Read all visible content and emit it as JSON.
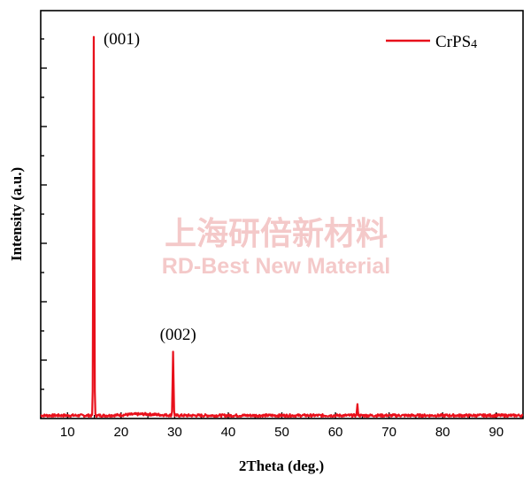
{
  "chart_data": {
    "type": "line",
    "title": "",
    "xlabel": "2Theta (deg.)",
    "ylabel": "Intensity (a.u.)",
    "xlim": [
      5,
      95
    ],
    "ylim": [
      0,
      100
    ],
    "x_ticks": [
      10,
      20,
      30,
      40,
      50,
      60,
      70,
      80,
      90
    ],
    "y_tick_labels_shown": false,
    "grid": false,
    "legend": "top-right",
    "series": [
      {
        "name": "CrPS4",
        "color": "#e8101b",
        "peaks": [
          {
            "x": 14.9,
            "y": 100
          },
          {
            "x": 29.7,
            "y": 17
          },
          {
            "x": 64.1,
            "y": 2.7
          }
        ],
        "baseline": 0.8
      }
    ],
    "annotations": [
      {
        "text": "(001)",
        "x": 14.9,
        "y": 100
      },
      {
        "text": "(002)",
        "x": 29.7,
        "y": 17
      }
    ]
  },
  "legend": {
    "main": "CrPS",
    "subscript": "4"
  },
  "watermark": {
    "line1": "上海研倍新材料",
    "line2": "RD-Best New Material"
  }
}
